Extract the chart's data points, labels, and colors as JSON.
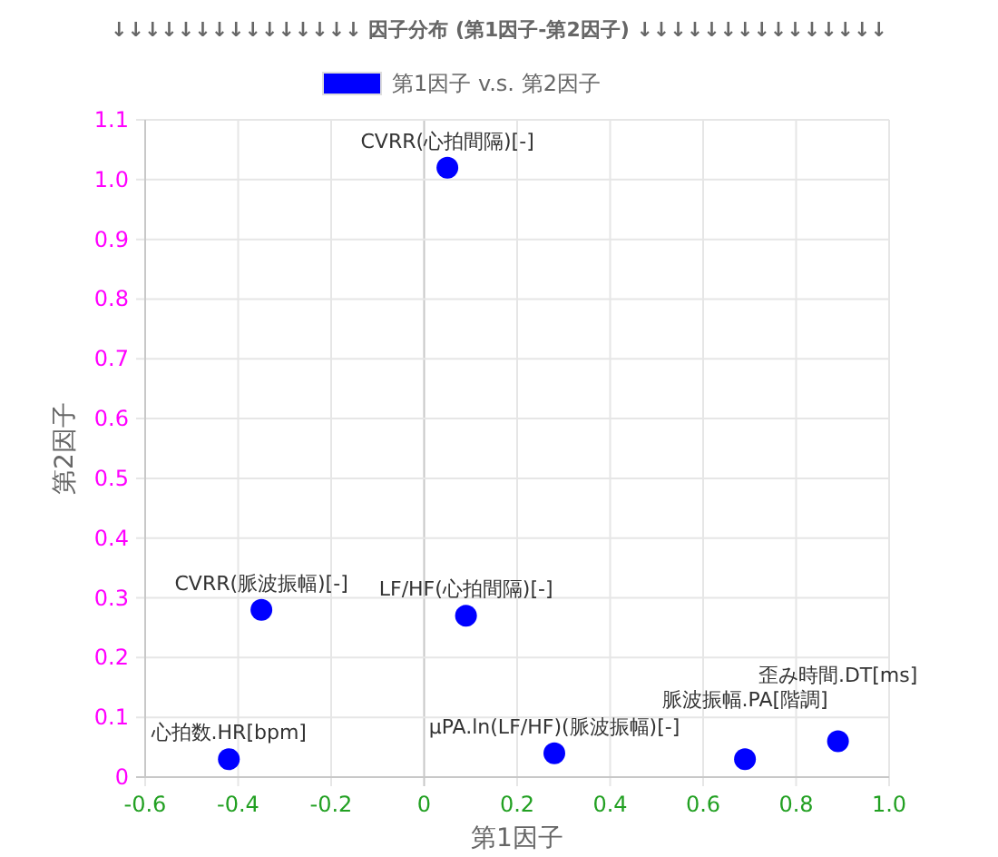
{
  "chart_data": {
    "type": "scatter",
    "title": "↓↓↓↓↓↓↓↓↓↓↓↓↓↓↓ 因子分布 (第1因子-第2因子) ↓↓↓↓↓↓↓↓↓↓↓↓↓↓↓",
    "xlabel": "第1因子",
    "ylabel": "第2因子",
    "series": [
      {
        "name": "第1因子 v.s. 第2因子",
        "color": "#0000ff",
        "x": [
          -0.42,
          0.28,
          0.69,
          0.89,
          0.05,
          -0.35,
          0.09
        ],
        "values": [
          0.03,
          0.04,
          0.03,
          0.06,
          1.02,
          0.28,
          0.27
        ]
      }
    ],
    "annotations": [
      {
        "text": "心拍数.HR[bpm]",
        "x": -0.42,
        "y": 0.03
      },
      {
        "text": "μPA.ln(LF/HF)(脈波振幅)[-]",
        "x": 0.28,
        "y": 0.04
      },
      {
        "text": "脈波振幅.PA[階調]",
        "x": 0.69,
        "y": 0.03
      },
      {
        "text": "歪み時間.DT[ms]",
        "x": 0.89,
        "y": 0.06
      },
      {
        "text": "CVRR(心拍間隔)[-]",
        "x": 0.05,
        "y": 1.02
      },
      {
        "text": "CVRR(脈波振幅)[-]",
        "x": -0.35,
        "y": 0.28
      },
      {
        "text": "LF/HF(心拍間隔)[-]",
        "x": 0.09,
        "y": 0.27
      }
    ],
    "xlim": [
      -0.6,
      1.0
    ],
    "xticks": [
      -0.6,
      -0.4,
      -0.2,
      0,
      0.2,
      0.4,
      0.6,
      0.8,
      {
        "value": 1,
        "label": "1.0"
      }
    ],
    "ylim": [
      0,
      1.1
    ],
    "yticks": [
      0,
      0.1,
      0.2,
      0.3,
      0.4,
      0.5,
      0.6,
      0.7,
      0.8,
      0.9,
      {
        "value": 1,
        "label": "1.0"
      },
      1.1
    ],
    "grid": true,
    "legend": "top",
    "marker": "circle"
  }
}
